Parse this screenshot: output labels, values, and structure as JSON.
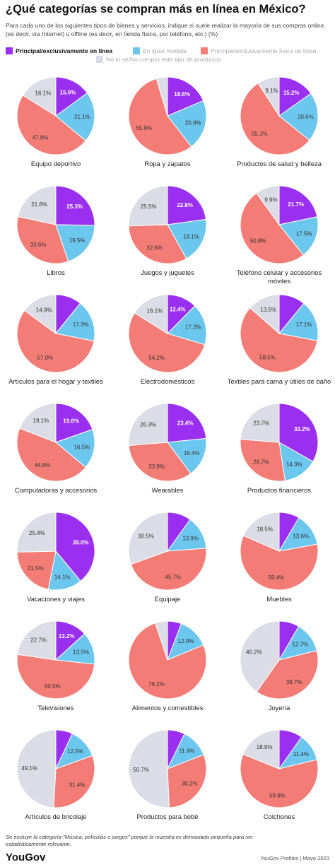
{
  "title": "¿Qué categorías se compran más en línea en México?",
  "subtitle": "Para cada uno de los siguientes tipos de bienes y servicios, indique si suele realizar la mayoría de sus compras online (es decir, vía Internet) u offline (es decir, en tienda física, por teléfono, etc.) (%)",
  "legend": [
    {
      "label": "Principal/exclusivamente en línea",
      "color": "#9b2ff0"
    },
    {
      "label": "En igual medida",
      "color": "#6cc7ef"
    },
    {
      "label": "Principal/exclusivamente fuera de línea",
      "color": "#f47c76"
    },
    {
      "label": "No lo sé/No compro este tipo de productos",
      "color": "#dcdce6"
    }
  ],
  "chart_data": {
    "type": "pie",
    "series_order": [
      "Principal/exclusivamente en línea",
      "En igual medida",
      "Principal/exclusivamente fuera de línea",
      "No lo sé/No compro este tipo de productos"
    ],
    "colors": [
      "#9b2ff0",
      "#6cc7ef",
      "#f47c76",
      "#dcdce6"
    ],
    "charts": [
      {
        "label": "Equipo deportivo",
        "values": [
          15.0,
          21.1,
          47.9,
          16.1
        ],
        "labels": [
          "15.0%",
          "21.1%",
          "47.9%",
          "16.1%"
        ]
      },
      {
        "label": "Ropa y zapatos",
        "values": [
          18.6,
          20.9,
          55.9,
          4.6
        ],
        "labels": [
          "18.6%",
          "20.9%",
          "55.9%",
          ""
        ]
      },
      {
        "label": "Productos de salud y belleza",
        "values": [
          15.2,
          20.6,
          55.1,
          9.1
        ],
        "labels": [
          "15.2%",
          "20.6%",
          "55.1%",
          "9.1%"
        ]
      },
      {
        "label": "Libros",
        "values": [
          25.3,
          19.5,
          33.6,
          21.6
        ],
        "labels": [
          "25.3%",
          "19.5%",
          "33.6%",
          "21.6%"
        ]
      },
      {
        "label": "Juegos y juguetes",
        "values": [
          22.8,
          19.1,
          32.6,
          25.5
        ],
        "labels": [
          "22.8%",
          "19.1%",
          "32.6%",
          "25.5%"
        ]
      },
      {
        "label": "Teléfono celular y accesorios móviles",
        "values": [
          21.7,
          17.5,
          50.8,
          9.9
        ],
        "labels": [
          "21.7%",
          "17.5%",
          "50.8%",
          "9.9%"
        ]
      },
      {
        "label": "Artículos para el hogar y textiles",
        "values": [
          10.8,
          17.3,
          57.0,
          14.9
        ],
        "labels": [
          "",
          "17.3%",
          "57.0%",
          "14.9%"
        ]
      },
      {
        "label": "Electrodomésticos",
        "values": [
          12.4,
          17.2,
          54.2,
          16.1
        ],
        "labels": [
          "12.4%",
          "17.2%",
          "54.2%",
          "16.1%"
        ]
      },
      {
        "label": "Textiles para cama y útiles de baño",
        "values": [
          10.9,
          17.1,
          58.5,
          13.5
        ],
        "labels": [
          "",
          "17.1%",
          "58.5%",
          "13.5%"
        ]
      },
      {
        "label": "Computadoras y accesorios",
        "values": [
          19.6,
          16.5,
          44.8,
          19.1
        ],
        "labels": [
          "19.6%",
          "16.5%",
          "44.8%",
          "19.1%"
        ]
      },
      {
        "label": "Wearables",
        "values": [
          23.4,
          16.4,
          33.9,
          26.3
        ],
        "labels": [
          "23.4%",
          "16.4%",
          "33.9%",
          "26.3%"
        ]
      },
      {
        "label": "Productos financieros",
        "values": [
          33.2,
          14.3,
          28.7,
          23.7
        ],
        "labels": [
          "33.2%",
          "14.3%",
          "28.7%",
          "23.7%"
        ]
      },
      {
        "label": "Vacaciones y viajes",
        "values": [
          39.0,
          14.1,
          21.5,
          25.4
        ],
        "labels": [
          "39.0%",
          "14.1%",
          "21.5%",
          "25.4%"
        ]
      },
      {
        "label": "Equipaje",
        "values": [
          9.9,
          13.9,
          45.7,
          30.5
        ],
        "labels": [
          "",
          "13.9%",
          "45.7%",
          "30.5%"
        ]
      },
      {
        "label": "Muebles",
        "values": [
          8.5,
          13.6,
          59.4,
          18.5
        ],
        "labels": [
          "",
          "13.6%",
          "59.4%",
          "18.5%"
        ]
      },
      {
        "label": "Televisiones",
        "values": [
          13.2,
          13.5,
          50.5,
          22.7
        ],
        "labels": [
          "13.2%",
          "13.5%",
          "50.5%",
          "22.7%"
        ]
      },
      {
        "label": "Alimentos y comestibles",
        "values": [
          5.8,
          12.9,
          76.2,
          5.1
        ],
        "labels": [
          "",
          "12.9%",
          "76.2%",
          ""
        ]
      },
      {
        "label": "Joyería",
        "values": [
          8.4,
          12.7,
          38.7,
          40.2
        ],
        "labels": [
          "",
          "12.7%",
          "38.7%",
          "40.2%"
        ]
      },
      {
        "label": "Artículos de bricolaje",
        "values": [
          7.0,
          12.5,
          31.4,
          49.1
        ],
        "labels": [
          "",
          "12.5%",
          "31.4%",
          "49.1%"
        ]
      },
      {
        "label": "Productos para bebé",
        "values": [
          7.2,
          11.9,
          30.2,
          50.7
        ],
        "labels": [
          "",
          "11.9%",
          "30.2%",
          "50.7%"
        ]
      },
      {
        "label": "Colchones",
        "values": [
          9.8,
          11.4,
          59.9,
          18.9
        ],
        "labels": [
          "",
          "11.4%",
          "59.9%",
          "18.9%"
        ]
      }
    ]
  },
  "footnote": "Se excluye la categoría \"Música, películas o juegos\" porque la muestra es demasiado pequeña para ser estadísticamente relevante.",
  "brand": "YouGov",
  "source": "YouGov Profiles | Mayo 2023"
}
